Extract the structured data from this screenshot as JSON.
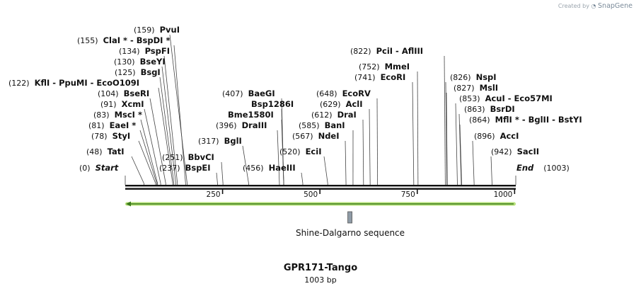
{
  "watermark": {
    "prefix": "Created by",
    "brand": "SnapGene",
    "icon": "snapgene-logo-icon"
  },
  "sequence": {
    "name": "GPR171-Tango",
    "length_label": "1003 bp",
    "length": 1003
  },
  "ends": {
    "start_label": "Start",
    "start_pos": "(0)",
    "end_label": "End",
    "end_pos": "(1003)"
  },
  "ruler_ticks": [
    250,
    500,
    750,
    1000
  ],
  "orf_arrow": {
    "start": 0,
    "end": 1003,
    "direction": "reverse",
    "color": "#b7e07a",
    "stroke": "#3a7a1a"
  },
  "feature": {
    "name": "Shine-Dalgarno sequence",
    "position": 577,
    "color": "#8f9ba6"
  },
  "enzymes": [
    {
      "pos": "(159)",
      "name": "PvuI",
      "site": 159
    },
    {
      "pos": "(155)",
      "name": "ClaI * - BspDI *",
      "site": 155
    },
    {
      "pos": "(134)",
      "name": "PspFI",
      "site": 134
    },
    {
      "pos": "(130)",
      "name": "BseYI",
      "site": 130
    },
    {
      "pos": "(125)",
      "name": "BsgI",
      "site": 125
    },
    {
      "pos": "(122)",
      "name": "KflI - PpuMI - EcoO109I",
      "site": 122
    },
    {
      "pos": "(104)",
      "name": "BseRI",
      "site": 104
    },
    {
      "pos": "(91)",
      "name": "XcmI",
      "site": 91
    },
    {
      "pos": "(83)",
      "name": "MscI *",
      "site": 83
    },
    {
      "pos": "(81)",
      "name": "EaeI *",
      "site": 81
    },
    {
      "pos": "(78)",
      "name": "StyI",
      "site": 78
    },
    {
      "pos": "(48)",
      "name": "TatI",
      "site": 48
    },
    {
      "pos": "(251)",
      "name": "BbvCI",
      "site": 251
    },
    {
      "pos": "(237)",
      "name": "BspEI",
      "site": 237
    },
    {
      "pos": "(317)",
      "name": "BglI",
      "site": 317
    },
    {
      "pos": "(407)",
      "name": "BaeGI",
      "site": 407
    },
    {
      "pos": "",
      "name": "Bsp1286I",
      "site": 407
    },
    {
      "pos": "",
      "name": "Bme1580I",
      "site": 407
    },
    {
      "pos": "(396)",
      "name": "DraIII",
      "site": 396
    },
    {
      "pos": "(456)",
      "name": "HaeIII",
      "site": 456
    },
    {
      "pos": "(520)",
      "name": "EciI",
      "site": 520
    },
    {
      "pos": "(567)",
      "name": "NdeI",
      "site": 567
    },
    {
      "pos": "(585)",
      "name": "BanI",
      "site": 585
    },
    {
      "pos": "(612)",
      "name": "DraI",
      "site": 612
    },
    {
      "pos": "(629)",
      "name": "AclI",
      "site": 629
    },
    {
      "pos": "(648)",
      "name": "EcoRV",
      "site": 648
    },
    {
      "pos": "(741)",
      "name": "EcoRI",
      "site": 741
    },
    {
      "pos": "(752)",
      "name": "MmeI",
      "site": 752
    },
    {
      "pos": "(822)",
      "name": "PciI - AflIII",
      "site": 822
    },
    {
      "pos": "(826)",
      "name": "NspI",
      "site": 826
    },
    {
      "pos": "(827)",
      "name": "MslI",
      "site": 827
    },
    {
      "pos": "(853)",
      "name": "AcuI - Eco57MI",
      "site": 853
    },
    {
      "pos": "(863)",
      "name": "BsrDI",
      "site": 863
    },
    {
      "pos": "(864)",
      "name": "MflI * - BglII - BstYI",
      "site": 864
    },
    {
      "pos": "(896)",
      "name": "AccI",
      "site": 896
    },
    {
      "pos": "(942)",
      "name": "SacII",
      "site": 942
    }
  ]
}
